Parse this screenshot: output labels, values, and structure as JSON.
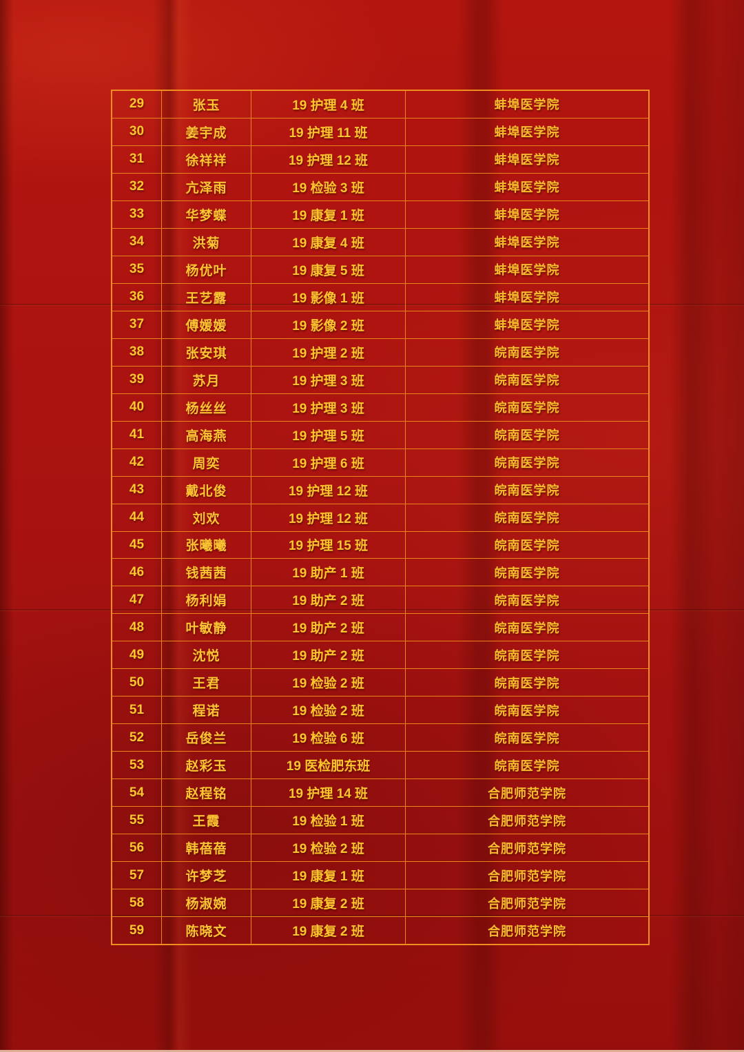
{
  "colors": {
    "background_red": "#a81310",
    "table_line_orange": "#ea861c",
    "table_outer_border": "#f08e1f",
    "text_gold": "#ffc62e",
    "bottom_strip": "#dfae97"
  },
  "table": {
    "rows": [
      {
        "no": "29",
        "name": "张玉",
        "class": "19 护理 4 班",
        "college": "蚌埠医学院"
      },
      {
        "no": "30",
        "name": "姜宇成",
        "class": "19 护理 11 班",
        "college": "蚌埠医学院"
      },
      {
        "no": "31",
        "name": "徐祥祥",
        "class": "19 护理 12 班",
        "college": "蚌埠医学院"
      },
      {
        "no": "32",
        "name": "亢泽雨",
        "class": "19 检验 3 班",
        "college": "蚌埠医学院"
      },
      {
        "no": "33",
        "name": "华梦蝶",
        "class": "19 康复 1 班",
        "college": "蚌埠医学院"
      },
      {
        "no": "34",
        "name": "洪菊",
        "class": "19 康复 4 班",
        "college": "蚌埠医学院"
      },
      {
        "no": "35",
        "name": "杨优叶",
        "class": "19 康复 5 班",
        "college": "蚌埠医学院"
      },
      {
        "no": "36",
        "name": "王艺露",
        "class": "19 影像 1 班",
        "college": "蚌埠医学院"
      },
      {
        "no": "37",
        "name": "傅媛媛",
        "class": "19 影像 2 班",
        "college": "蚌埠医学院"
      },
      {
        "no": "38",
        "name": "张安琪",
        "class": "19 护理 2 班",
        "college": "皖南医学院"
      },
      {
        "no": "39",
        "name": "苏月",
        "class": "19 护理 3 班",
        "college": "皖南医学院"
      },
      {
        "no": "40",
        "name": "杨丝丝",
        "class": "19 护理 3 班",
        "college": "皖南医学院"
      },
      {
        "no": "41",
        "name": "高海燕",
        "class": "19 护理 5 班",
        "college": "皖南医学院"
      },
      {
        "no": "42",
        "name": "周奕",
        "class": "19 护理 6 班",
        "college": "皖南医学院"
      },
      {
        "no": "43",
        "name": "戴北俊",
        "class": "19 护理 12 班",
        "college": "皖南医学院"
      },
      {
        "no": "44",
        "name": "刘欢",
        "class": "19 护理 12 班",
        "college": "皖南医学院"
      },
      {
        "no": "45",
        "name": "张曦曦",
        "class": "19 护理 15 班",
        "college": "皖南医学院"
      },
      {
        "no": "46",
        "name": "钱茜茜",
        "class": "19 助产 1 班",
        "college": "皖南医学院"
      },
      {
        "no": "47",
        "name": "杨利娟",
        "class": "19 助产 2 班",
        "college": "皖南医学院"
      },
      {
        "no": "48",
        "name": "叶敏静",
        "class": "19 助产 2 班",
        "college": "皖南医学院"
      },
      {
        "no": "49",
        "name": "沈悦",
        "class": "19 助产 2 班",
        "college": "皖南医学院"
      },
      {
        "no": "50",
        "name": "王君",
        "class": "19 检验 2 班",
        "college": "皖南医学院"
      },
      {
        "no": "51",
        "name": "程诺",
        "class": "19 检验 2 班",
        "college": "皖南医学院"
      },
      {
        "no": "52",
        "name": "岳俊兰",
        "class": "19 检验 6 班",
        "college": "皖南医学院"
      },
      {
        "no": "53",
        "name": "赵彩玉",
        "class": "19 医检肥东班",
        "college": "皖南医学院"
      },
      {
        "no": "54",
        "name": "赵程铭",
        "class": "19 护理 14 班",
        "college": "合肥师范学院"
      },
      {
        "no": "55",
        "name": "王霞",
        "class": "19 检验 1 班",
        "college": "合肥师范学院"
      },
      {
        "no": "56",
        "name": "韩蓓蓓",
        "class": "19 检验 2 班",
        "college": "合肥师范学院"
      },
      {
        "no": "57",
        "name": "许梦芝",
        "class": "19 康复 1 班",
        "college": "合肥师范学院"
      },
      {
        "no": "58",
        "name": "杨淑婉",
        "class": "19 康复 2 班",
        "college": "合肥师范学院"
      },
      {
        "no": "59",
        "name": "陈晓文",
        "class": "19 康复 2 班",
        "college": "合肥师范学院"
      }
    ]
  }
}
